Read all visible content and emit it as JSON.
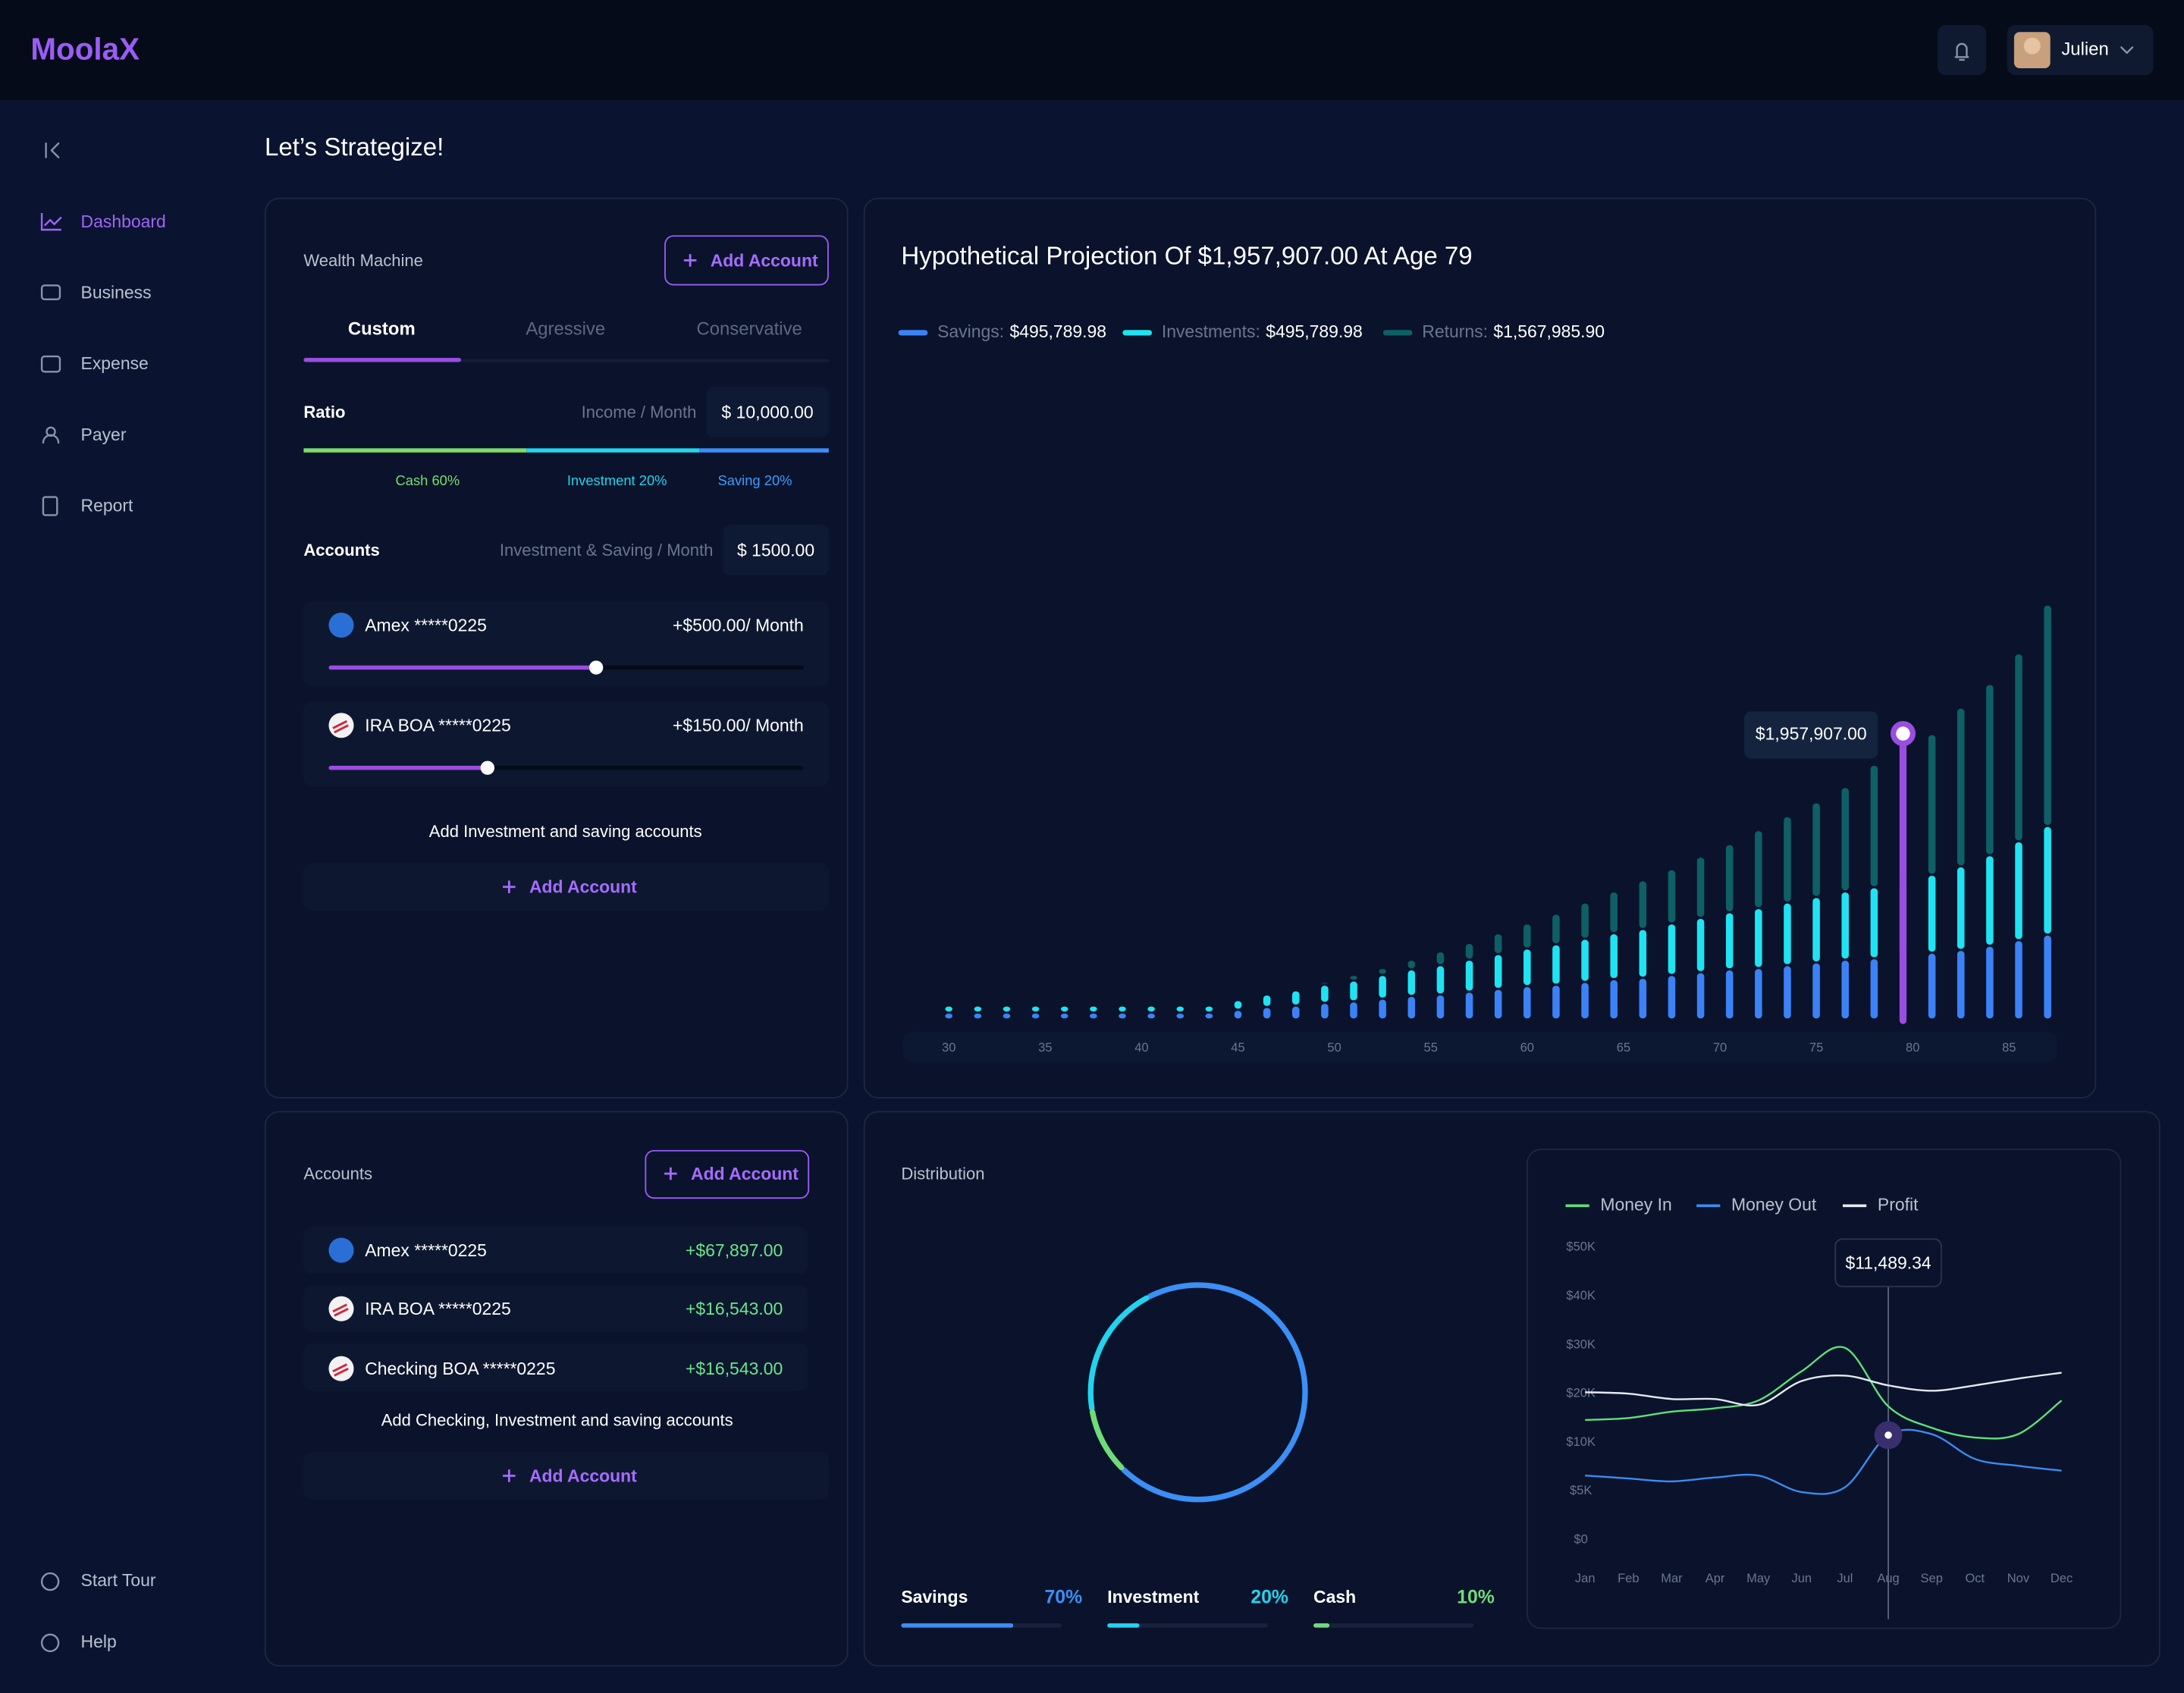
{
  "header": {
    "logo": "MoolaX",
    "user": "Julien"
  },
  "sidebar": {
    "items": [
      "Dashboard",
      "Business",
      "Expense",
      "Payer",
      "Report"
    ],
    "footer": [
      "Start Tour",
      "Help"
    ]
  },
  "page_title": "Let’s Strategize!",
  "wealth_machine": {
    "title": "Wealth Machine",
    "add_button": "Add Account",
    "tabs": [
      "Custom",
      "Agressive",
      "Conservative"
    ],
    "ratio": {
      "label": "Ratio",
      "income_label": "Income / Month",
      "income_value": "$ 10,000.00",
      "split": [
        "Cash 60%",
        "Investment 20%",
        "Saving 20%"
      ]
    },
    "accounts": {
      "label": "Accounts",
      "monthly_label": "Investment & Saving / Month",
      "monthly_value": "$ 1500.00",
      "items": [
        {
          "name": "Amex  *****0225",
          "amount": "+$500.00/ Month"
        },
        {
          "name": "IRA BOA *****0225",
          "amount": "+$150.00/ Month"
        }
      ],
      "note": "Add  Investment and saving accounts",
      "add_button": "Add Account"
    }
  },
  "accounts_card": {
    "title": "Accounts",
    "add_button": "Add Account",
    "items": [
      {
        "name": "Amex  *****0225",
        "balance": "+$67,897.00"
      },
      {
        "name": "IRA BOA *****0225",
        "balance": "+$16,543.00"
      },
      {
        "name": "Checking BOA *****0225",
        "balance": "+$16,543.00"
      }
    ],
    "note": "Add Checking, Investment and saving accounts"
  },
  "projection_chart": {
    "type": "stacked_bar",
    "title": "Hypothetical Projection Of $1,957,907.00 At Age 79",
    "x": [
      30,
      31.5,
      33,
      34.5,
      36,
      37.5,
      39,
      40.5,
      42,
      43.5,
      45,
      46.5,
      48,
      49.5,
      51,
      52.5,
      54,
      55.5,
      57,
      58.5,
      60,
      61.5,
      63,
      64.5,
      66,
      67.5,
      69,
      70.5,
      72,
      73.5,
      75,
      76.5,
      78,
      79.5,
      81,
      82.5,
      84,
      85.5,
      87
    ],
    "xlim": [
      27.6,
      87.5
    ],
    "xticks": [
      30,
      35,
      40,
      45,
      50,
      55,
      60,
      65,
      70,
      75,
      80,
      85
    ],
    "series": [
      {
        "name": "Savings:",
        "legend_value": "$495,789.98",
        "color": "#3b82f6",
        "values": [
          47500,
          47500,
          47500,
          47500,
          47500,
          47500,
          47500,
          47500,
          47500,
          47500,
          66500,
          85500,
          95000,
          114000,
          123500,
          142500,
          161500,
          171000,
          190000,
          209000,
          228000,
          237500,
          256500,
          275500,
          285000,
          304000,
          323000,
          342000,
          351500,
          370500,
          389500,
          408500,
          418000,
          437000,
          456000,
          475000,
          503500,
          541500,
          579500
        ]
      },
      {
        "name": "Investments:",
        "legend_value": "$495,789.98",
        "color": "#1fe3f2",
        "values": [
          47500,
          47500,
          47500,
          47500,
          47500,
          47500,
          47500,
          47500,
          47500,
          47500,
          66500,
          85500,
          104500,
          123500,
          142500,
          161500,
          180500,
          199500,
          218500,
          237500,
          256500,
          275500,
          294500,
          313500,
          332500,
          351500,
          370500,
          389500,
          408500,
          427500,
          446500,
          465500,
          484500,
          503500,
          532000,
          570000,
          617500,
          674500,
          741000
        ]
      },
      {
        "name": "Returns:",
        "legend_value": "$1,567,985.90",
        "color": "#0e5f66",
        "values": [
          0,
          0,
          0,
          0,
          0,
          0,
          0,
          0,
          0,
          0,
          0,
          0,
          9500,
          19000,
          38000,
          47500,
          66500,
          95000,
          114000,
          142500,
          171000,
          209000,
          247000,
          285000,
          332500,
          370500,
          418000,
          465500,
          532000,
          589000,
          646000,
          712500,
          836000,
          1017407,
          959500,
          1083000,
          1168500,
          1282500,
          1510500
        ]
      }
    ],
    "highlight": {
      "index": 33,
      "label": "$1,957,907.00",
      "color": "#9b4de0"
    }
  },
  "distribution_chart": {
    "type": "donut",
    "title": "Distribution",
    "categories": [
      "Savings",
      "Investment",
      "Cash"
    ],
    "values": [
      70,
      20,
      10
    ],
    "value_labels": [
      "70%",
      "20%",
      "10%"
    ],
    "colors": [
      "#3b8ff5",
      "#22d3ee",
      "#6fdc7a"
    ]
  },
  "cashflow_chart": {
    "type": "line",
    "categories": [
      "Jan",
      "Feb",
      "Mar",
      "Apr",
      "May",
      "Jun",
      "Jul",
      "Aug",
      "Sep",
      "Oct",
      "Nov",
      "Dec"
    ],
    "series": [
      {
        "name": "Money In",
        "color": "#5ee07a",
        "values": [
          14600,
          15000,
          16300,
          17000,
          18600,
          24600,
          29400,
          17400,
          13000,
          11000,
          11700,
          18600
        ]
      },
      {
        "name": "Money Out",
        "color": "#3b8cf0",
        "values": [
          6600,
          6300,
          6000,
          6400,
          6600,
          4900,
          5400,
          11489.34,
          11700,
          8300,
          7600,
          7100
        ]
      },
      {
        "name": "Profit",
        "color": "#e6e9f0",
        "values": [
          20300,
          20000,
          18900,
          18900,
          17700,
          22600,
          23700,
          21700,
          20600,
          21700,
          23100,
          24300
        ]
      }
    ],
    "ylim": [
      0,
      50000
    ],
    "yticks": [
      {
        "value": 0,
        "label": "$0"
      },
      {
        "value": 5000,
        "label": "$5K"
      },
      {
        "value": 10000,
        "label": "$10K"
      },
      {
        "value": 20000,
        "label": "$20K"
      },
      {
        "value": 30000,
        "label": "$30K"
      },
      {
        "value": 40000,
        "label": "$40K"
      },
      {
        "value": 50000,
        "label": "$50K"
      }
    ],
    "tooltip": {
      "series": 1,
      "index": 7,
      "label": "$11,489.34"
    }
  }
}
